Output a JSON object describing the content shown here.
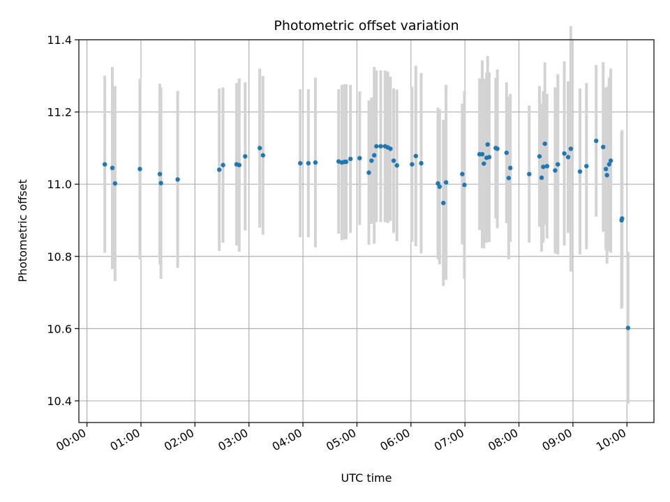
{
  "chart_data": {
    "type": "scatter",
    "title": "Photometric offset variation",
    "xlabel": "UTC time",
    "ylabel": "Photometric offset",
    "x_unit": "hours",
    "xlim": [
      -0.15,
      10.5
    ],
    "ylim": [
      10.34,
      11.4
    ],
    "x_ticks": [
      0,
      1,
      2,
      3,
      4,
      5,
      6,
      7,
      8,
      9,
      10
    ],
    "x_tick_labels": [
      "00:00",
      "01:00",
      "02:00",
      "03:00",
      "04:00",
      "05:00",
      "06:00",
      "07:00",
      "08:00",
      "09:00",
      "10:00"
    ],
    "y_ticks": [
      10.4,
      10.6,
      10.8,
      11.0,
      11.2,
      11.4
    ],
    "y_tick_labels": [
      "10.4",
      "10.6",
      "10.8",
      "11.0",
      "11.2",
      "11.4"
    ],
    "grid": true,
    "colors": {
      "points": "#1f77b4",
      "error_bars": "#d3d3d3",
      "grid": "#b0b0b0"
    },
    "x": [
      0.33,
      0.47,
      0.52,
      0.98,
      1.35,
      1.37,
      1.68,
      2.45,
      2.52,
      2.77,
      2.82,
      2.93,
      3.2,
      3.26,
      3.95,
      4.1,
      4.23,
      4.66,
      4.72,
      4.77,
      4.8,
      4.88,
      5.05,
      5.22,
      5.27,
      5.32,
      5.36,
      5.44,
      5.52,
      5.57,
      5.62,
      5.68,
      5.74,
      6.02,
      6.09,
      6.19,
      6.5,
      6.53,
      6.6,
      6.65,
      6.95,
      6.99,
      7.27,
      7.32,
      7.35,
      7.4,
      7.42,
      7.45,
      7.57,
      7.6,
      7.77,
      7.81,
      7.84,
      8.19,
      8.38,
      8.42,
      8.45,
      8.48,
      8.52,
      8.67,
      8.72,
      8.84,
      8.91,
      8.96,
      9.13,
      9.25,
      9.43,
      9.56,
      9.61,
      9.63,
      9.67,
      9.7,
      9.9,
      9.91,
      10.02
    ],
    "y": [
      11.055,
      11.045,
      11.002,
      11.042,
      11.028,
      11.003,
      11.013,
      11.04,
      11.053,
      11.055,
      11.053,
      11.077,
      11.1,
      11.08,
      11.058,
      11.058,
      11.06,
      11.063,
      11.06,
      11.062,
      11.062,
      11.07,
      11.072,
      11.032,
      11.065,
      11.08,
      11.105,
      11.105,
      11.105,
      11.102,
      11.098,
      11.065,
      11.052,
      11.055,
      11.078,
      11.058,
      11.002,
      10.993,
      10.948,
      11.005,
      11.028,
      10.998,
      11.083,
      11.083,
      11.057,
      11.073,
      11.11,
      11.075,
      11.1,
      11.098,
      11.087,
      11.017,
      11.045,
      11.028,
      11.077,
      11.018,
      11.048,
      11.112,
      11.05,
      11.038,
      11.055,
      11.085,
      11.075,
      11.098,
      11.035,
      11.05,
      11.12,
      11.103,
      11.042,
      11.025,
      11.055,
      11.065,
      10.9,
      10.905,
      10.602
    ],
    "yerr": [
      0.245,
      0.28,
      0.27,
      0.25,
      0.25,
      0.265,
      0.245,
      0.225,
      0.215,
      0.225,
      0.24,
      0.205,
      0.22,
      0.22,
      0.205,
      0.205,
      0.235,
      0.2,
      0.215,
      0.215,
      0.215,
      0.205,
      0.185,
      0.2,
      0.175,
      0.245,
      0.21,
      0.21,
      0.21,
      0.21,
      0.2,
      0.2,
      0.21,
      0.215,
      0.25,
      0.25,
      0.21,
      0.215,
      0.23,
      0.27,
      0.195,
      0.26,
      0.21,
      0.26,
      0.235,
      0.235,
      0.245,
      0.235,
      0.195,
      0.22,
      0.195,
      0.225,
      0.205,
      0.19,
      0.195,
      0.205,
      0.21,
      0.225,
      0.2,
      0.23,
      0.25,
      0.255,
      0.21,
      0.34,
      0.23,
      0.23,
      0.21,
      0.235,
      0.225,
      0.245,
      0.24,
      0.255,
      0.245,
      0.245,
      0.21
    ]
  }
}
